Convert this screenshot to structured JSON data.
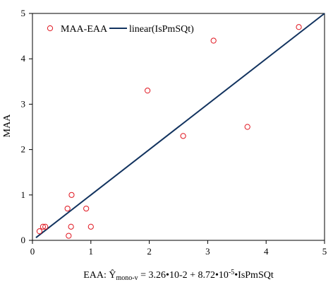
{
  "chart_data": {
    "type": "scatter",
    "xlabel_main": "EAA: Ŷ",
    "xlabel_sub": "mono-v",
    "xlabel_rest": " = 3.26•10-2 + 8.72•10",
    "xlabel_sup": "-5",
    "xlabel_tail": "•IsPmSQt",
    "ylabel": "MAA",
    "xlim": [
      0,
      5
    ],
    "ylim": [
      0,
      5
    ],
    "xticks": [
      0,
      1,
      2,
      3,
      4,
      5
    ],
    "yticks": [
      0,
      1,
      2,
      3,
      4,
      5
    ],
    "grid": false,
    "legend_position": "top-left",
    "series": [
      {
        "name": "MAA-EAA",
        "kind": "scatter",
        "color": "#e0141e",
        "marker": "open-circle",
        "points": [
          {
            "x": 0.12,
            "y": 0.2
          },
          {
            "x": 0.18,
            "y": 0.3
          },
          {
            "x": 0.22,
            "y": 0.3
          },
          {
            "x": 0.6,
            "y": 0.7
          },
          {
            "x": 0.62,
            "y": 0.1
          },
          {
            "x": 0.66,
            "y": 0.3
          },
          {
            "x": 0.67,
            "y": 1.0
          },
          {
            "x": 0.92,
            "y": 0.7
          },
          {
            "x": 1.0,
            "y": 0.3
          },
          {
            "x": 1.97,
            "y": 3.3
          },
          {
            "x": 2.58,
            "y": 2.3
          },
          {
            "x": 3.1,
            "y": 4.4
          },
          {
            "x": 3.68,
            "y": 2.5
          },
          {
            "x": 4.56,
            "y": 4.7
          }
        ]
      },
      {
        "name": "linear(IsPmSQt)",
        "kind": "line",
        "color": "#12335f",
        "points": [
          {
            "x": 0.06,
            "y": 0.06
          },
          {
            "x": 5.0,
            "y": 5.0
          }
        ]
      }
    ]
  }
}
